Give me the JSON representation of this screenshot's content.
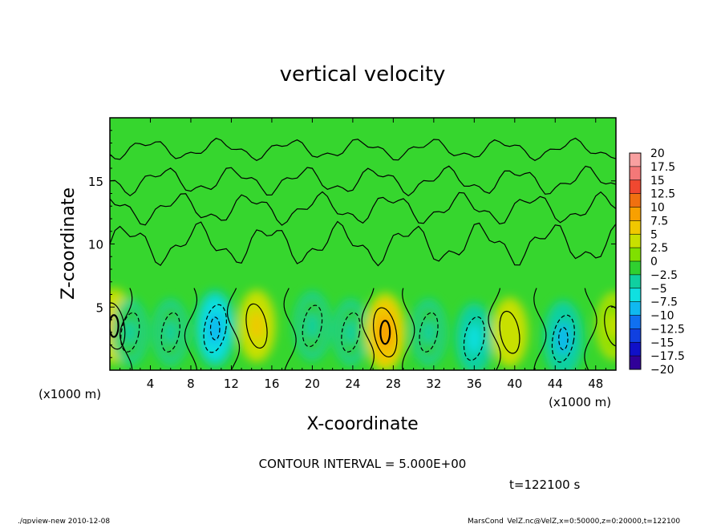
{
  "chart_data": {
    "type": "heatmap",
    "title": "vertical velocity",
    "xlabel": "X-coordinate",
    "ylabel": "Z-coordinate",
    "x_unit_label": "(x1000 m)",
    "y_unit_label": "(x1000 m)",
    "xlim": [
      0,
      50
    ],
    "ylim": [
      0,
      20
    ],
    "x_ticks": [
      4,
      8,
      12,
      16,
      20,
      24,
      28,
      32,
      36,
      40,
      44,
      48
    ],
    "y_ticks": [
      5,
      10,
      15
    ],
    "colorbar": {
      "levels": [
        20,
        17.5,
        15,
        12.5,
        10,
        7.5,
        5,
        2.5,
        0,
        -2.5,
        -5,
        -7.5,
        -10,
        -12.5,
        -15,
        -17.5,
        -20
      ],
      "labels": [
        "20",
        "17.5",
        "15",
        "12.5",
        "10",
        "7.5",
        "5",
        "2.5",
        "0",
        "−2.5",
        "−5",
        "−7.5",
        "−10",
        "−12.5",
        "−15",
        "−17.5",
        "−20"
      ],
      "colors": [
        "#f8a0a0",
        "#f47878",
        "#f04830",
        "#f07010",
        "#f8a000",
        "#f0c800",
        "#c8e000",
        "#80e000",
        "#30d030",
        "#10d0a0",
        "#10e0e0",
        "#10b8f0",
        "#1070f0",
        "#1040e0",
        "#1010c8",
        "#300098",
        "#700098"
      ]
    },
    "cells": [
      {
        "x": 0.4,
        "z": 3.5,
        "w": 7.5
      },
      {
        "x": 2.0,
        "z": 3.0,
        "w": -2.5
      },
      {
        "x": 6.0,
        "z": 3.0,
        "w": -2.5
      },
      {
        "x": 10.4,
        "z": 3.3,
        "w": -8.5
      },
      {
        "x": 14.5,
        "z": 3.5,
        "w": 6.0
      },
      {
        "x": 20.0,
        "z": 3.5,
        "w": -4.0
      },
      {
        "x": 23.8,
        "z": 3.0,
        "w": -2.5
      },
      {
        "x": 27.2,
        "z": 3.0,
        "w": 9.5
      },
      {
        "x": 31.5,
        "z": 3.0,
        "w": -2.5
      },
      {
        "x": 36.0,
        "z": 2.5,
        "w": -5.5
      },
      {
        "x": 39.5,
        "z": 3.0,
        "w": 4.5
      },
      {
        "x": 44.8,
        "z": 2.5,
        "w": -8.0
      },
      {
        "x": 49.8,
        "z": 3.5,
        "w": 3.0
      }
    ]
  },
  "annotations": {
    "contour_interval": "CONTOUR INTERVAL = 5.000E+00",
    "time": "t=122100 s",
    "footer_left": "./gpview-new   2010-12-08",
    "footer_right": "MarsCond_VelZ.nc@VelZ,x=0:50000,z=0:20000,t=122100"
  }
}
